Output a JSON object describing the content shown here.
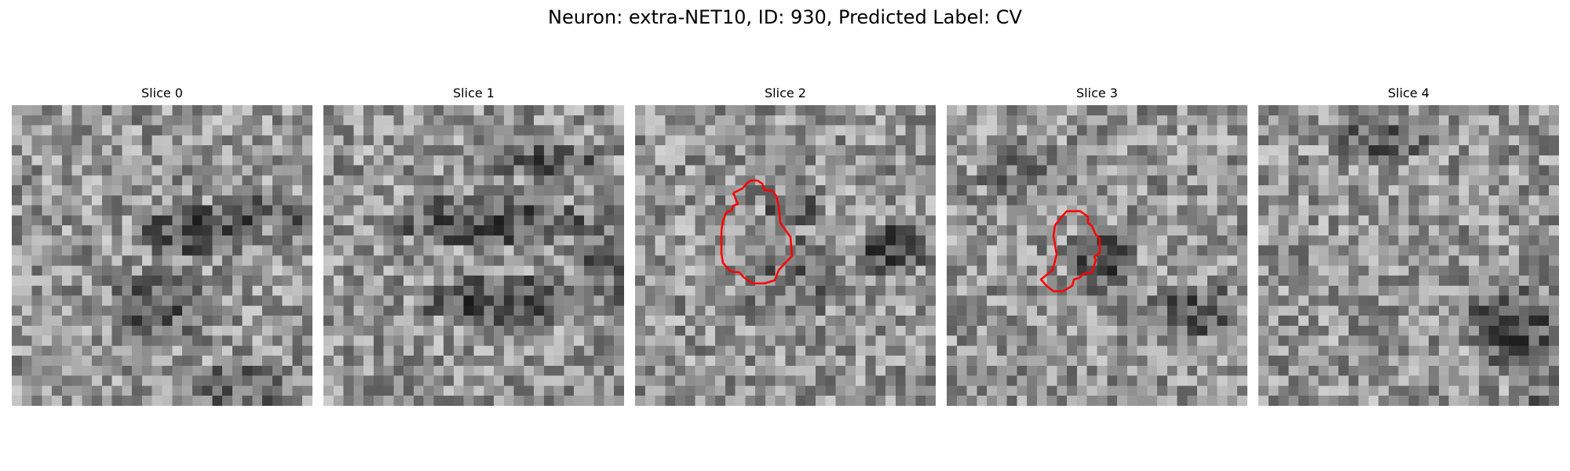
{
  "figure": {
    "title": "Neuron: extra-NET10, ID: 930, Predicted Label: CV"
  },
  "panels": [
    {
      "title": "Slice 0",
      "has_contour": false
    },
    {
      "title": "Slice 1",
      "has_contour": false
    },
    {
      "title": "Slice 2",
      "has_contour": true
    },
    {
      "title": "Slice 3",
      "has_contour": true
    },
    {
      "title": "Slice 4",
      "has_contour": false
    }
  ],
  "colors": {
    "contour": "#ff0000",
    "colormap": "grayscale"
  }
}
